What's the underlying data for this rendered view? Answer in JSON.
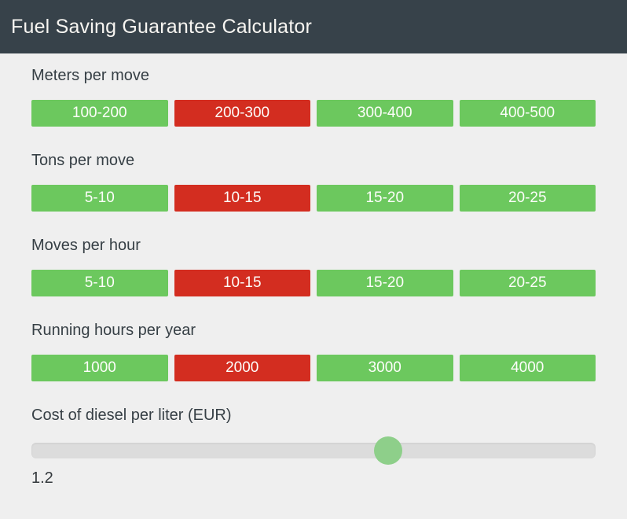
{
  "header": {
    "title": "Fuel Saving Guarantee Calculator"
  },
  "colors": {
    "header_bg": "#37424a",
    "header_text": "#f7f5f1",
    "page_bg": "#efefef",
    "label_text": "#363f45",
    "option_green": "#6cc85e",
    "option_red": "#d32d20",
    "option_text": "#fdfdfa",
    "slider_track": "#dcdcdc",
    "slider_handle": "#8ecf8a",
    "value_text": "#33383c"
  },
  "sections": [
    {
      "label": "Meters per move",
      "options": [
        {
          "label": "100-200",
          "selected": false
        },
        {
          "label": "200-300",
          "selected": true
        },
        {
          "label": "300-400",
          "selected": false
        },
        {
          "label": "400-500",
          "selected": false
        }
      ]
    },
    {
      "label": "Tons per move",
      "options": [
        {
          "label": "5-10",
          "selected": false
        },
        {
          "label": "10-15",
          "selected": true
        },
        {
          "label": "15-20",
          "selected": false
        },
        {
          "label": "20-25",
          "selected": false
        }
      ]
    },
    {
      "label": "Moves per hour",
      "options": [
        {
          "label": "5-10",
          "selected": false
        },
        {
          "label": "10-15",
          "selected": true
        },
        {
          "label": "15-20",
          "selected": false
        },
        {
          "label": "20-25",
          "selected": false
        }
      ]
    },
    {
      "label": "Running hours per year",
      "options": [
        {
          "label": "1000",
          "selected": false
        },
        {
          "label": "2000",
          "selected": true
        },
        {
          "label": "3000",
          "selected": false
        },
        {
          "label": "4000",
          "selected": false
        }
      ]
    }
  ],
  "slider": {
    "label": "Cost of diesel per liter (EUR)",
    "value": "1.2",
    "position_percent": 63.2
  }
}
